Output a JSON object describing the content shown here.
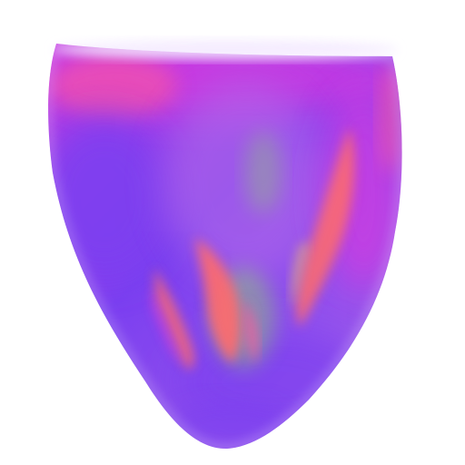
{
  "scene": {
    "subject": "volume-rendered-heart-ventricle",
    "background_color": "#ffffff",
    "colors": {
      "violet": "#7b3ff0",
      "magenta": "#d63adf",
      "pink": "#ff5a9a",
      "coral": "#ff6c6c",
      "lavender": "#b36ae8",
      "green": "#8fd56a",
      "yellow": "#ffd35a",
      "rim": "#f2e6ff"
    }
  }
}
